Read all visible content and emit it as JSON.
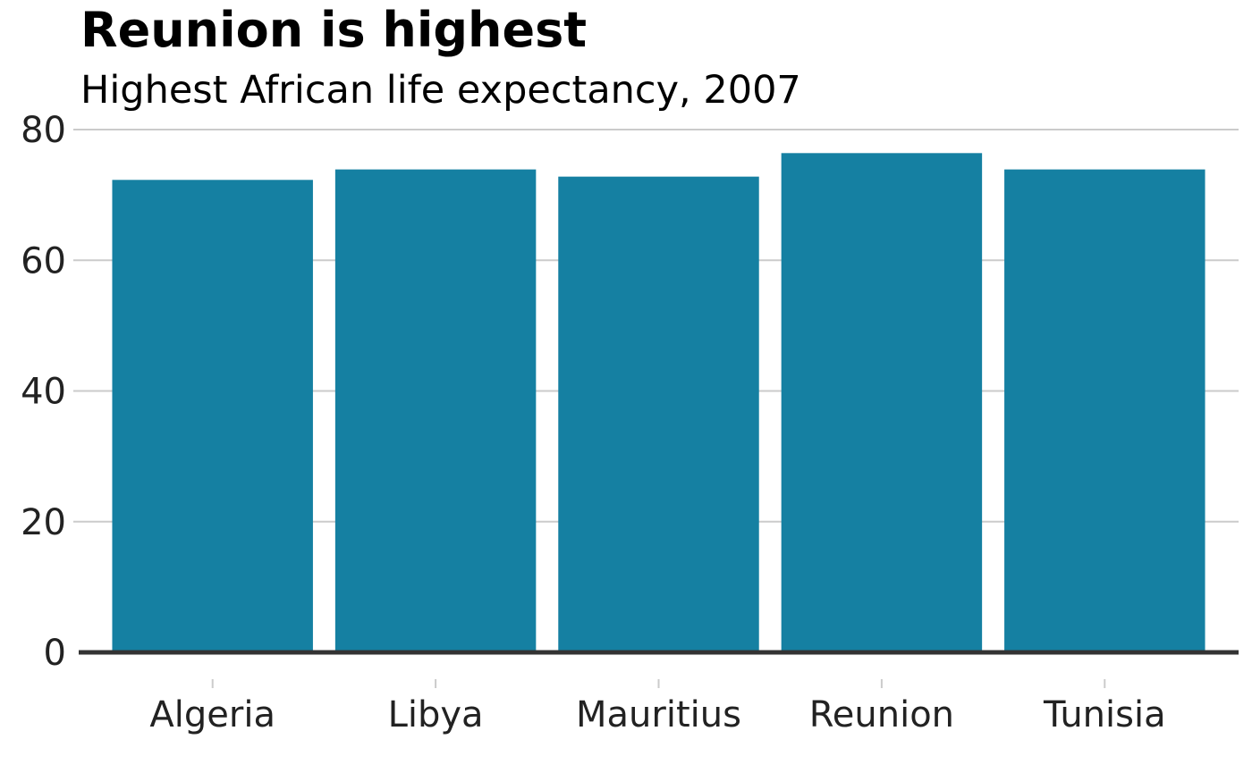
{
  "chart_data": {
    "type": "bar",
    "title": "Reunion is highest",
    "subtitle": "Highest African life expectancy, 2007",
    "xlabel": "",
    "ylabel": "",
    "categories": [
      "Algeria",
      "Libya",
      "Mauritius",
      "Reunion",
      "Tunisia"
    ],
    "values": [
      72.3,
      73.9,
      72.8,
      76.4,
      73.9
    ],
    "ylim": [
      0,
      80
    ],
    "yticks": [
      "0",
      "20",
      "40",
      "60",
      "80"
    ],
    "grid": "horizontal",
    "legend": "none",
    "colors": {
      "bar": "#1580A2",
      "grid": "#cbcbcb",
      "baseline": "#333333",
      "text": "#222222"
    }
  }
}
